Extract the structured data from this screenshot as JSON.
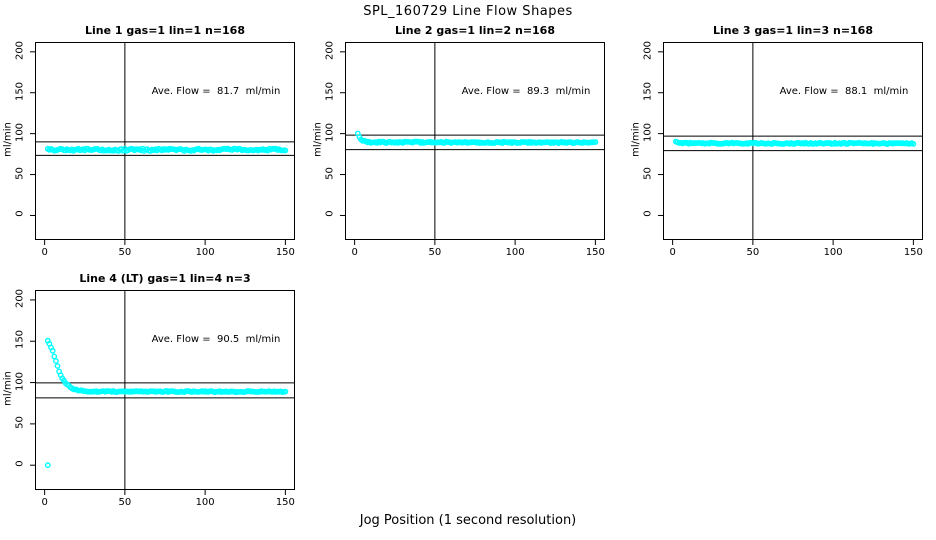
{
  "figure": {
    "title": "SPL_160729  Line Flow Shapes",
    "xlabel": "Jog Position (1 second resolution)",
    "background_color": "#ffffff",
    "point_color": "#00ffff",
    "axis_color": "#000000"
  },
  "chart_data": [
    {
      "type": "scatter",
      "title": "Line 1 gas=1 lin=1 n=168",
      "annotation": "Ave. Flow =  81.7  ml/min",
      "ave_flow_ml_min": 81.7,
      "ylabel": "ml/min",
      "xticks": [
        0,
        50,
        100,
        150
      ],
      "yticks": [
        0,
        50,
        100,
        150,
        200
      ],
      "xlim": [
        -6,
        156
      ],
      "ylim": [
        -30,
        212
      ],
      "vline_x": 50,
      "hlines": [
        89.9,
        73.5
      ],
      "x_start": 2,
      "x_end": 150,
      "anchors": [
        [
          2,
          80.5
        ],
        [
          60,
          80.2
        ],
        [
          150,
          80.6
        ]
      ],
      "noise": 1.4,
      "extra_points": []
    },
    {
      "type": "scatter",
      "title": "Line 2 gas=1 lin=2 n=168",
      "annotation": "Ave. Flow =  89.3  ml/min",
      "ave_flow_ml_min": 89.3,
      "ylabel": "ml/min",
      "xticks": [
        0,
        50,
        100,
        150
      ],
      "yticks": [
        0,
        50,
        100,
        150,
        200
      ],
      "xlim": [
        -6,
        156
      ],
      "ylim": [
        -30,
        212
      ],
      "vline_x": 50,
      "hlines": [
        98.2,
        80.4
      ],
      "x_start": 2,
      "x_end": 150,
      "anchors": [
        [
          2,
          100
        ],
        [
          3,
          96
        ],
        [
          4,
          93
        ],
        [
          5,
          91.5
        ],
        [
          7,
          90
        ],
        [
          10,
          89.5
        ],
        [
          150,
          89
        ]
      ],
      "noise": 0.8,
      "extra_points": []
    },
    {
      "type": "scatter",
      "title": "Line 3 gas=1 lin=3 n=168",
      "annotation": "Ave. Flow =  88.1  ml/min",
      "ave_flow_ml_min": 88.1,
      "ylabel": "ml/min",
      "xticks": [
        0,
        50,
        100,
        150
      ],
      "yticks": [
        0,
        50,
        100,
        150,
        200
      ],
      "xlim": [
        -6,
        156
      ],
      "ylim": [
        -30,
        212
      ],
      "vline_x": 50,
      "hlines": [
        96.9,
        79.3
      ],
      "x_start": 2,
      "x_end": 150,
      "anchors": [
        [
          2,
          90.5
        ],
        [
          3,
          89
        ],
        [
          5,
          88.3
        ],
        [
          150,
          88
        ]
      ],
      "noise": 0.7,
      "extra_points": []
    },
    {
      "type": "scatter",
      "title": "Line 4 (LT) gas=1 lin=4 n=3",
      "annotation": "Ave. Flow =  90.5  ml/min",
      "ave_flow_ml_min": 90.5,
      "ylabel": "ml/min",
      "xticks": [
        0,
        50,
        100,
        150
      ],
      "yticks": [
        0,
        50,
        100,
        150,
        200
      ],
      "xlim": [
        -6,
        156
      ],
      "ylim": [
        -30,
        212
      ],
      "vline_x": 50,
      "hlines": [
        99.6,
        81.5
      ],
      "x_start": 2,
      "x_end": 150,
      "anchors": [
        [
          2,
          150
        ],
        [
          3,
          147
        ],
        [
          4,
          143
        ],
        [
          5,
          138
        ],
        [
          6,
          132
        ],
        [
          7,
          126
        ],
        [
          8,
          120
        ],
        [
          9,
          114
        ],
        [
          10,
          109
        ],
        [
          11,
          105
        ],
        [
          12,
          102
        ],
        [
          13,
          99.5
        ],
        [
          14,
          97.5
        ],
        [
          15,
          96
        ],
        [
          16,
          94.5
        ],
        [
          17,
          93.3
        ],
        [
          18,
          92.3
        ],
        [
          19,
          91.5
        ],
        [
          20,
          91
        ],
        [
          22,
          90.2
        ],
        [
          25,
          89.6
        ],
        [
          30,
          89.2
        ],
        [
          150,
          89
        ]
      ],
      "noise": 0.7,
      "extra_points": [
        [
          2,
          0
        ]
      ]
    }
  ]
}
